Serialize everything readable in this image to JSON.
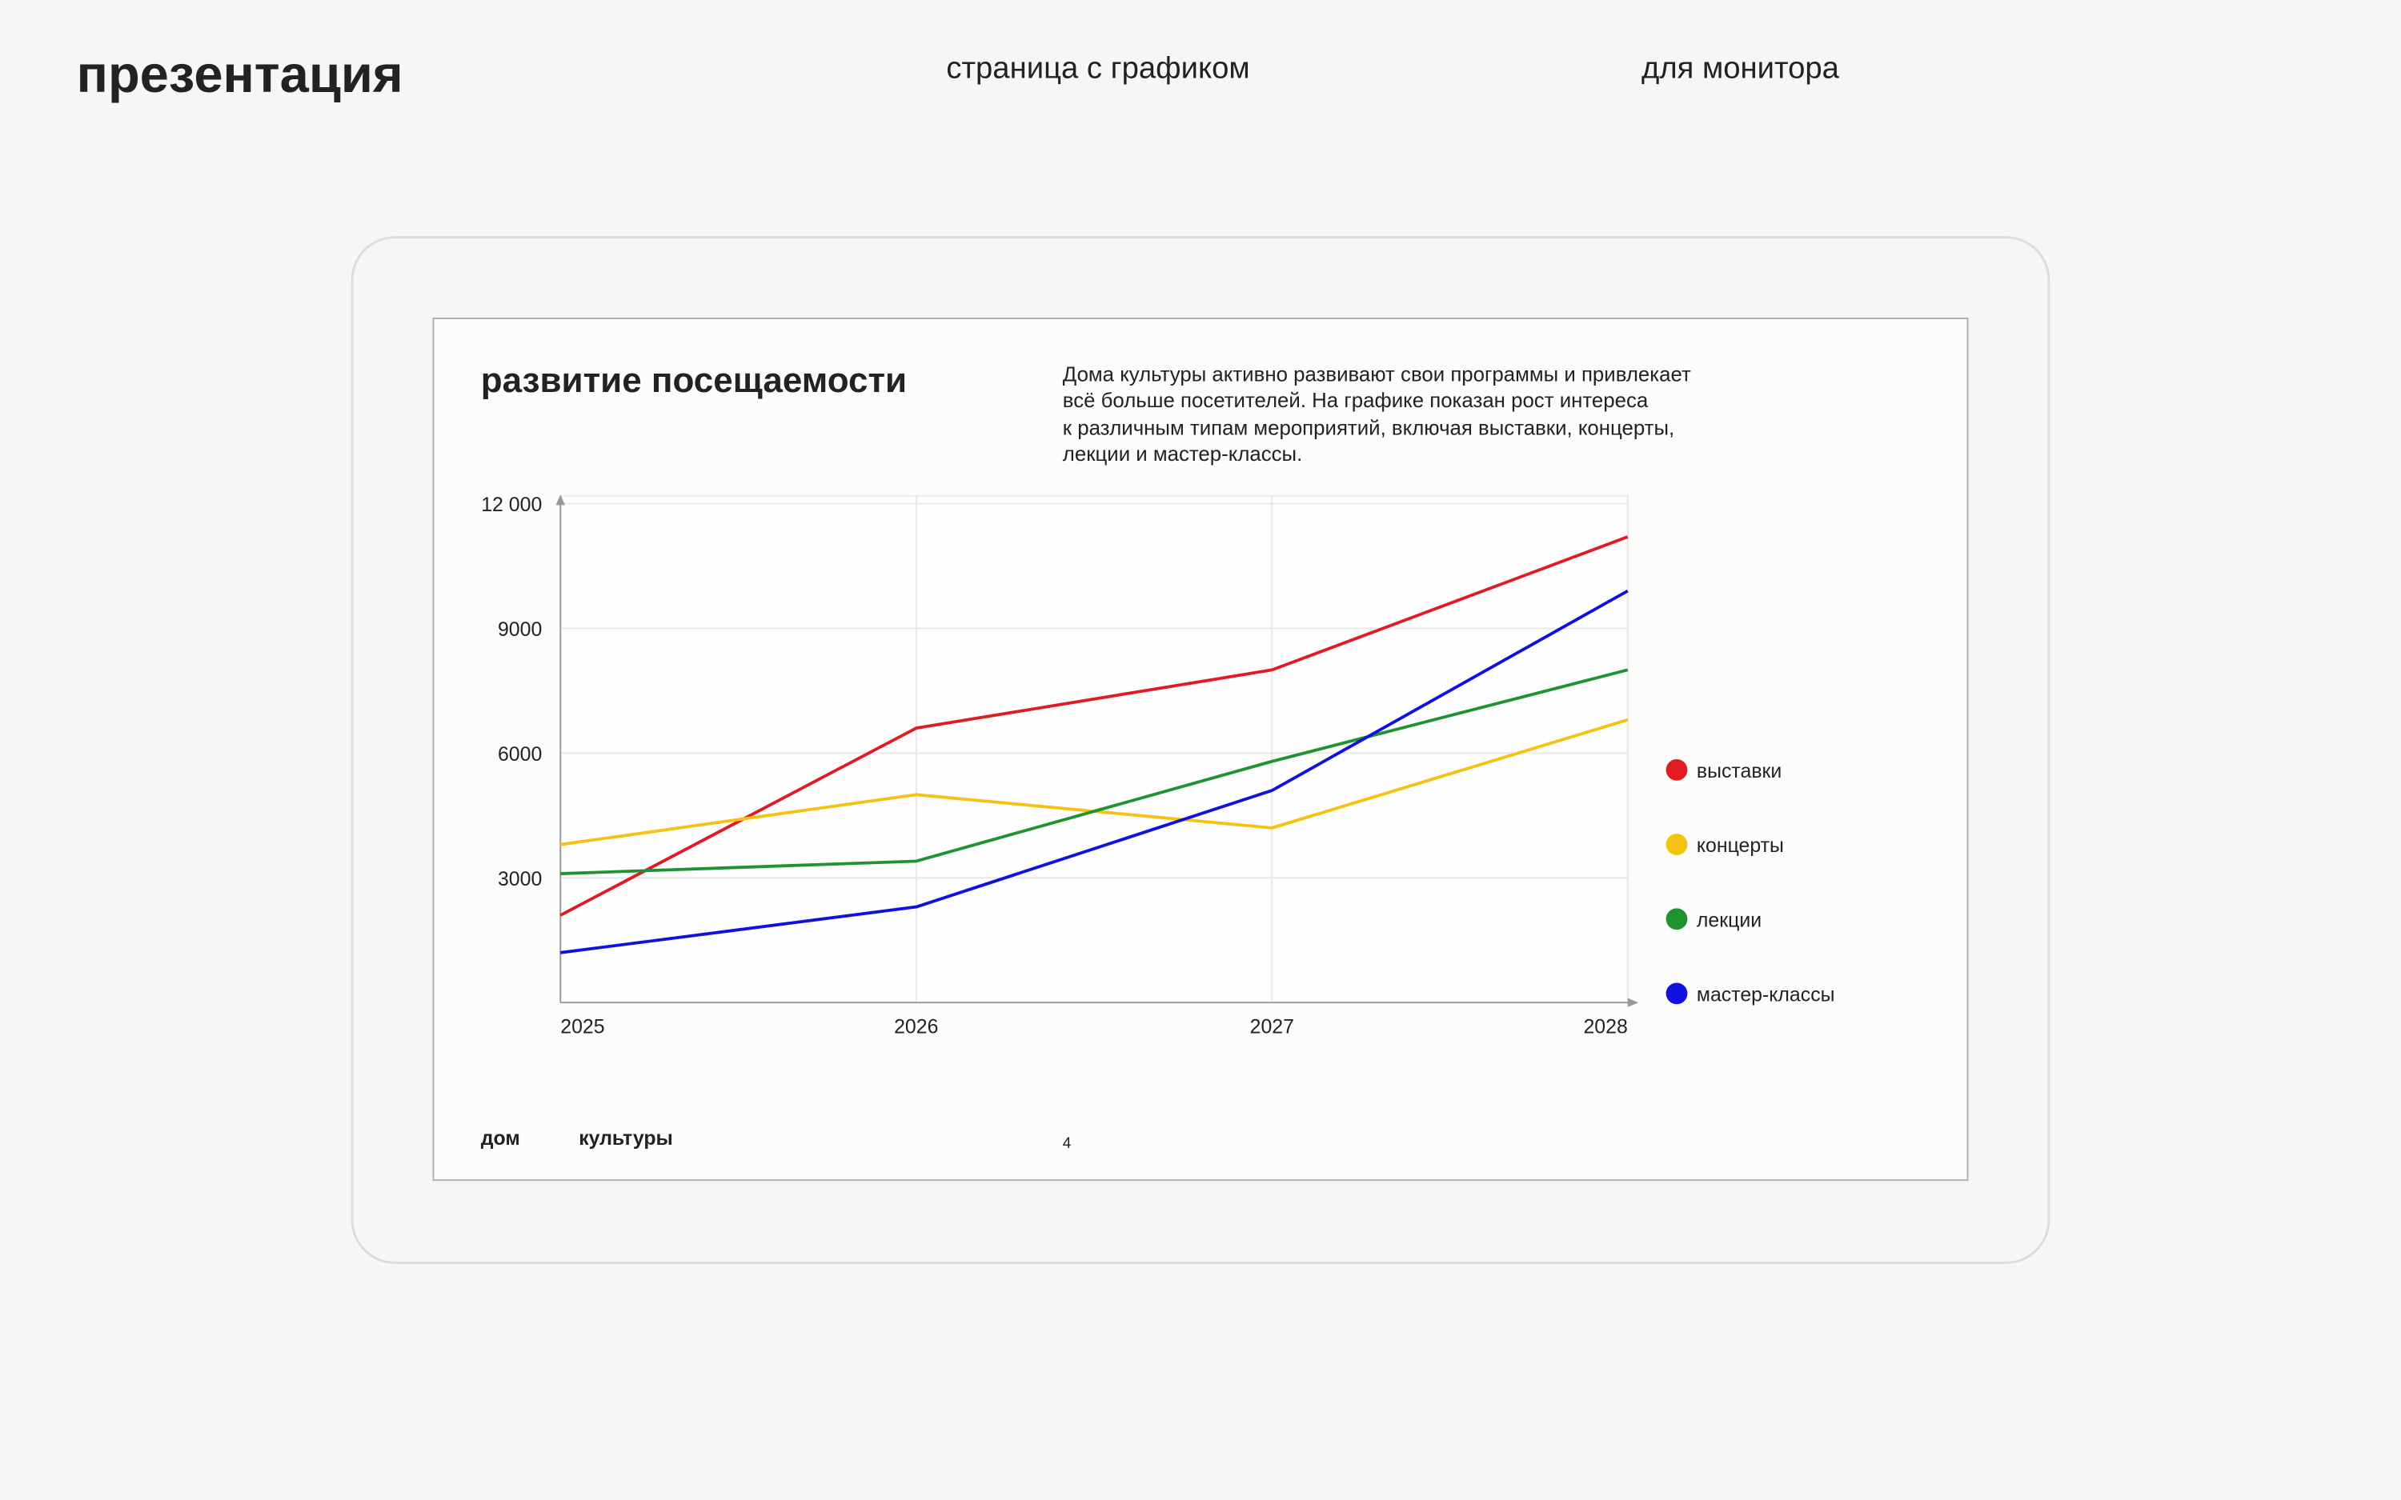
{
  "header": {
    "title": "презентация",
    "subtitle": "страница с графиком",
    "note": "для монитора"
  },
  "slide": {
    "title": "развитие посещаемости",
    "description": [
      "Дома культуры активно развивают свои программы и привлекает",
      "всё больше посетителей. На графике показан рост интереса",
      "к различным типам мероприятий, включая выставки, концерты,",
      "лекции и мастер-классы."
    ],
    "footer_left": "дом",
    "footer_right": "культуры",
    "page_number": "4"
  },
  "chart_data": {
    "type": "line",
    "categories": [
      "2025",
      "2026",
      "2027",
      "2028"
    ],
    "series": [
      {
        "name": "выставки",
        "color": "#e01b24",
        "values": [
          2100,
          6600,
          8000,
          11200
        ]
      },
      {
        "name": "концерты",
        "color": "#f5c211",
        "values": [
          3800,
          5000,
          4200,
          6800
        ]
      },
      {
        "name": "лекции",
        "color": "#1f9332",
        "values": [
          3100,
          3400,
          5800,
          8000
        ]
      },
      {
        "name": "мастер-классы",
        "color": "#1010e0",
        "values": [
          1200,
          2300,
          5100,
          9900
        ]
      }
    ],
    "ylim": [
      0,
      12000
    ],
    "yticks": [
      3000,
      6000,
      9000,
      {
        "value": 12000,
        "label": "12 000"
      }
    ],
    "grid": true,
    "legend": "right"
  }
}
